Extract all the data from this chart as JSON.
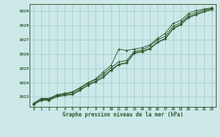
{
  "title": "Graphe pression niveau de la mer (hPa)",
  "bg_color": "#cce8e8",
  "grid_color": "#aacfcf",
  "line_color": "#2d5a2d",
  "xlim": [
    -0.5,
    23.5
  ],
  "ylim": [
    1022.3,
    1029.5
  ],
  "yticks": [
    1023,
    1024,
    1025,
    1026,
    1027,
    1028,
    1029
  ],
  "xticks": [
    0,
    1,
    2,
    3,
    4,
    5,
    6,
    7,
    8,
    9,
    10,
    11,
    12,
    13,
    14,
    15,
    16,
    17,
    18,
    19,
    20,
    21,
    22,
    23
  ],
  "series": [
    [
      1022.55,
      1022.9,
      1022.9,
      1023.15,
      1023.25,
      1023.35,
      1023.65,
      1024.0,
      1024.25,
      1024.75,
      1025.2,
      1026.35,
      1026.25,
      1026.35,
      1026.45,
      1026.65,
      1027.1,
      1027.45,
      1028.15,
      1028.35,
      1028.85,
      1029.05,
      1029.15,
      1029.25
    ],
    [
      1022.55,
      1022.85,
      1022.85,
      1023.1,
      1023.2,
      1023.3,
      1023.6,
      1023.95,
      1024.2,
      1024.6,
      1025.05,
      1025.45,
      1025.55,
      1026.2,
      1026.3,
      1026.55,
      1027.0,
      1027.25,
      1027.95,
      1028.2,
      1028.7,
      1028.9,
      1029.1,
      1029.2
    ],
    [
      1022.5,
      1022.8,
      1022.8,
      1023.05,
      1023.15,
      1023.2,
      1023.5,
      1023.85,
      1024.1,
      1024.45,
      1024.9,
      1025.3,
      1025.4,
      1026.1,
      1026.2,
      1026.4,
      1026.85,
      1027.1,
      1027.8,
      1028.1,
      1028.6,
      1028.8,
      1029.0,
      1029.15
    ],
    [
      1022.45,
      1022.75,
      1022.75,
      1023.0,
      1023.1,
      1023.15,
      1023.45,
      1023.8,
      1024.05,
      1024.35,
      1024.85,
      1025.25,
      1025.35,
      1026.05,
      1026.15,
      1026.35,
      1026.8,
      1027.05,
      1027.75,
      1028.05,
      1028.55,
      1028.75,
      1028.95,
      1029.1
    ]
  ]
}
